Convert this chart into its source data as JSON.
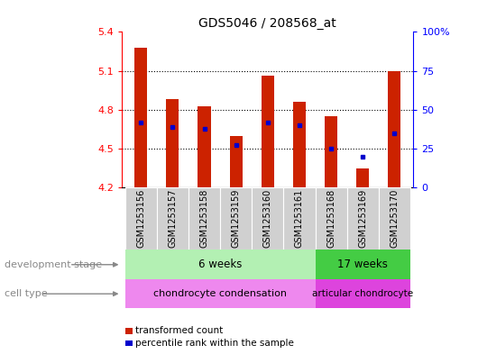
{
  "title": "GDS5046 / 208568_at",
  "samples": [
    "GSM1253156",
    "GSM1253157",
    "GSM1253158",
    "GSM1253159",
    "GSM1253160",
    "GSM1253161",
    "GSM1253168",
    "GSM1253169",
    "GSM1253170"
  ],
  "bar_values": [
    5.28,
    4.88,
    4.83,
    4.6,
    5.06,
    4.86,
    4.75,
    4.35,
    5.1
  ],
  "bar_base": 4.2,
  "percentile_values": [
    4.7,
    4.67,
    4.65,
    4.53,
    4.7,
    4.68,
    4.5,
    4.44,
    4.62
  ],
  "ylim": [
    4.2,
    5.4
  ],
  "yticks_left": [
    4.2,
    4.5,
    4.8,
    5.1,
    5.4
  ],
  "yticks_right": [
    0,
    25,
    50,
    75,
    100
  ],
  "bar_color": "#cc2200",
  "percentile_color": "#0000cc",
  "bg_color": "#ffffff",
  "dev_stage_6w": "6 weeks",
  "dev_stage_17w": "17 weeks",
  "cell_type_1": "chondrocyte condensation",
  "cell_type_2": "articular chondrocyte",
  "group_6w_count": 6,
  "group_17w_count": 3,
  "dev_stage_color_6w": "#b3f0b3",
  "dev_stage_color_17w": "#44cc44",
  "cell_type_color_1": "#ee88ee",
  "cell_type_color_2": "#dd44dd",
  "legend_bar_label": "transformed count",
  "legend_pct_label": "percentile rank within the sample",
  "left_label": "development stage",
  "left_label2": "cell type",
  "bar_width": 0.4,
  "xlabel_fontsize": 7,
  "ylabel_fontsize": 8,
  "title_fontsize": 10
}
